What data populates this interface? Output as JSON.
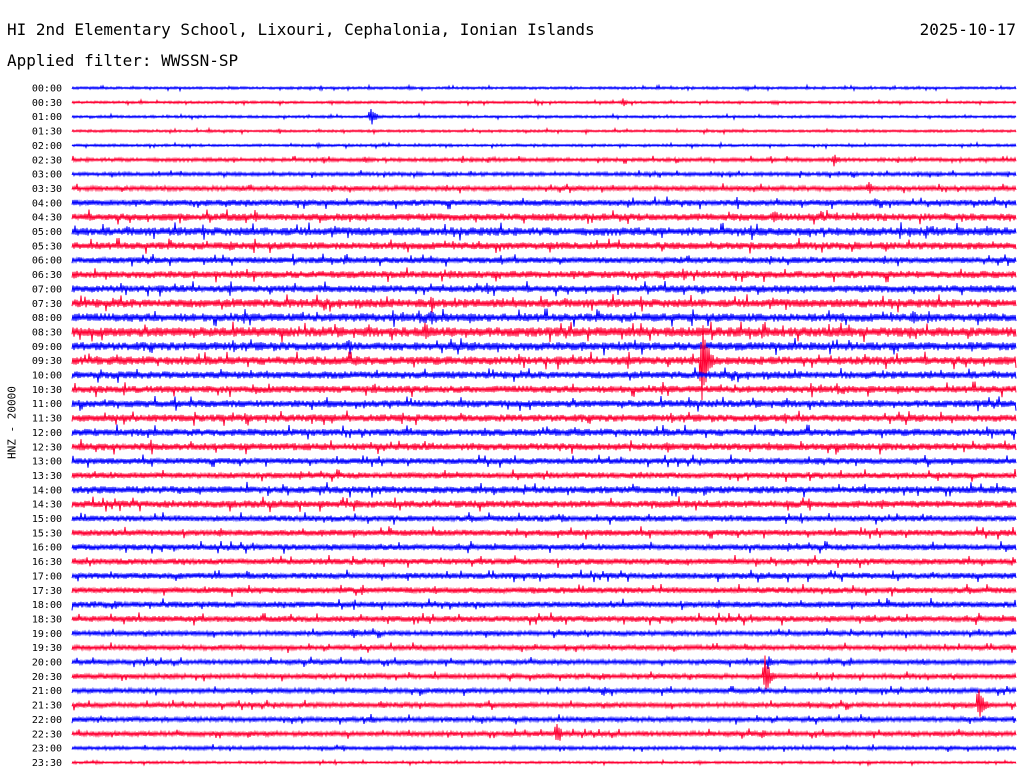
{
  "header": {
    "station": "HI 2nd Elementary School, Lixouri, Cephalonia, Ionian Islands",
    "date": "2025-10-17",
    "filter": "Applied filter: WWSSN-SP"
  },
  "colors": {
    "even_row": "#0000ff",
    "odd_row": "#ff0033"
  },
  "chart_data": {
    "type": "line",
    "title": "HI 2nd Elementary School, Lixouri, Cephalonia, Ionian Islands",
    "ylabel": "HNZ - 20000",
    "xlabel": "",
    "row_labels": [
      "00:00",
      "00:30",
      "01:00",
      "01:30",
      "02:00",
      "02:30",
      "03:00",
      "03:30",
      "04:00",
      "04:30",
      "05:00",
      "05:30",
      "06:00",
      "06:30",
      "07:00",
      "07:30",
      "08:00",
      "08:30",
      "09:00",
      "09:30",
      "10:00",
      "10:30",
      "11:00",
      "11:30",
      "12:00",
      "12:30",
      "13:00",
      "13:30",
      "14:00",
      "14:30",
      "15:00",
      "15:30",
      "16:00",
      "16:30",
      "17:00",
      "17:30",
      "18:00",
      "18:30",
      "19:00",
      "19:30",
      "20:00",
      "20:30",
      "21:00",
      "21:30",
      "22:00",
      "22:30",
      "23:00",
      "23:30"
    ],
    "x_range_minutes": [
      0,
      30
    ],
    "noise_level": [
      1,
      1,
      1,
      1,
      1,
      1.5,
      1.5,
      2,
      2.5,
      3,
      3.5,
      3,
      2.5,
      3,
      3,
      3.5,
      3.5,
      4,
      3.5,
      3.5,
      3,
      3,
      3,
      3,
      3,
      3,
      2.5,
      2.5,
      3,
      3,
      2.5,
      2.5,
      2.5,
      2.5,
      2.5,
      2.5,
      2.5,
      2.5,
      2,
      2,
      2,
      2,
      2,
      2,
      2,
      2,
      1.5,
      1
    ],
    "events": [
      {
        "row": "00:00",
        "minute": 10.7,
        "amplitude": 3
      },
      {
        "row": "00:30",
        "minute": 17.5,
        "amplitude": 5
      },
      {
        "row": "00:30",
        "minute": 22.3,
        "amplitude": 3
      },
      {
        "row": "01:00",
        "minute": 9.5,
        "amplitude": 10
      },
      {
        "row": "02:00",
        "minute": 7.8,
        "amplitude": 3
      },
      {
        "row": "02:30",
        "minute": 9.3,
        "amplitude": 6
      },
      {
        "row": "02:30",
        "minute": 24.2,
        "amplitude": 8
      },
      {
        "row": "03:30",
        "minute": 25.3,
        "amplitude": 9
      },
      {
        "row": "04:00",
        "minute": 5.5,
        "amplitude": 6
      },
      {
        "row": "04:00",
        "minute": 25.5,
        "amplitude": 6
      },
      {
        "row": "04:30",
        "minute": 5.8,
        "amplitude": 8
      },
      {
        "row": "04:30",
        "minute": 22.3,
        "amplitude": 10
      },
      {
        "row": "04:30",
        "minute": 25.8,
        "amplitude": 6
      },
      {
        "row": "05:30",
        "minute": 5.0,
        "amplitude": 7
      },
      {
        "row": "06:30",
        "minute": 12.0,
        "amplitude": 7
      },
      {
        "row": "06:30",
        "minute": 19.4,
        "amplitude": 8
      },
      {
        "row": "07:00",
        "minute": 13.2,
        "amplitude": 6
      },
      {
        "row": "07:00",
        "minute": 20.0,
        "amplitude": 8
      },
      {
        "row": "07:30",
        "minute": 11.4,
        "amplitude": 12
      },
      {
        "row": "07:30",
        "minute": 11.0,
        "amplitude": 8
      },
      {
        "row": "08:00",
        "minute": 11.4,
        "amplitude": 10
      },
      {
        "row": "08:00",
        "minute": 26.7,
        "amplitude": 9
      },
      {
        "row": "08:30",
        "minute": 11.2,
        "amplitude": 14
      },
      {
        "row": "08:30",
        "minute": 26.6,
        "amplitude": 9
      },
      {
        "row": "09:00",
        "minute": 8.8,
        "amplitude": 8
      },
      {
        "row": "09:00",
        "minute": 13.2,
        "amplitude": 7
      },
      {
        "row": "09:30",
        "minute": 9.0,
        "amplitude": 9
      },
      {
        "row": "09:30",
        "minute": 20.0,
        "amplitude": 60
      },
      {
        "row": "10:30",
        "minute": 9.6,
        "amplitude": 9
      },
      {
        "row": "11:00",
        "minute": 8.1,
        "amplitude": 8
      },
      {
        "row": "11:00",
        "minute": 19.6,
        "amplitude": 7
      },
      {
        "row": "12:30",
        "minute": 7.5,
        "amplitude": 6
      },
      {
        "row": "14:30",
        "minute": 9.0,
        "amplitude": 7
      },
      {
        "row": "16:00",
        "minute": 9.2,
        "amplitude": 5
      },
      {
        "row": "19:00",
        "minute": 8.9,
        "amplitude": 7
      },
      {
        "row": "20:00",
        "minute": 22.1,
        "amplitude": 8
      },
      {
        "row": "20:30",
        "minute": 22.0,
        "amplitude": 25
      },
      {
        "row": "21:00",
        "minute": 16.9,
        "amplitude": 6
      },
      {
        "row": "21:30",
        "minute": 9.8,
        "amplitude": 6
      },
      {
        "row": "21:30",
        "minute": 28.8,
        "amplitude": 25
      },
      {
        "row": "22:00",
        "minute": 9.5,
        "amplitude": 6
      },
      {
        "row": "22:30",
        "minute": 15.4,
        "amplitude": 14
      },
      {
        "row": "22:30",
        "minute": 21.9,
        "amplitude": 7
      }
    ],
    "grid": false,
    "legend": "none"
  }
}
